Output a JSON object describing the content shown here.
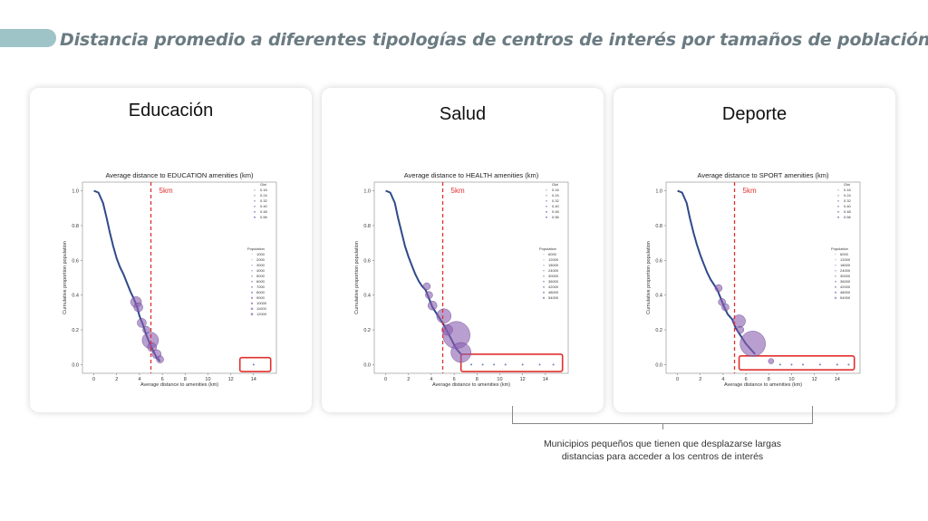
{
  "header": {
    "title": "Distancia promedio a diferentes tipologías de centros de interés por tamaños de población"
  },
  "colors": {
    "line": "#2f4a8a",
    "bubble": "#8a5fb0",
    "threshold": "#e0302e",
    "highlight_box": "#e0302e",
    "accent": "#9fc4c8"
  },
  "cards": [
    {
      "heading": "Educación",
      "threshold_label": "5km",
      "gini_title": "Gini",
      "gini_values": [
        "0.16",
        "0.24",
        "0.32",
        "0.40",
        "0.48",
        "0.56"
      ],
      "pop_title": "Population",
      "pop_values": [
        "1000",
        "2000",
        "3000",
        "4000",
        "5000",
        "6000",
        "7000",
        "8000",
        "9000",
        "10000",
        "11000",
        "12000"
      ]
    },
    {
      "heading": "Salud",
      "threshold_label": "5km",
      "gini_title": "Gini",
      "gini_values": [
        "0.16",
        "0.24",
        "0.32",
        "0.40",
        "0.48",
        "0.56"
      ],
      "pop_title": "Population",
      "pop_values": [
        "6000",
        "12000",
        "18000",
        "24000",
        "30000",
        "36000",
        "42000",
        "48000",
        "54000"
      ]
    },
    {
      "heading": "Deporte",
      "threshold_label": "5km",
      "gini_title": "Gini",
      "gini_values": [
        "0.16",
        "0.24",
        "0.32",
        "0.40",
        "0.48",
        "0.56"
      ],
      "pop_title": "Population",
      "pop_values": [
        "6000",
        "12000",
        "18000",
        "24000",
        "30000",
        "36000",
        "42000",
        "48000",
        "54000"
      ]
    }
  ],
  "chart_data": [
    {
      "type": "scatter",
      "title": "Average distance to EDUCATION amenities (km)",
      "xlabel": "Average distance to amenities (km)",
      "ylabel": "Cumulative proportion population",
      "xlim": [
        -1,
        16
      ],
      "ylim": [
        -0.05,
        1.05
      ],
      "xticks": [
        0,
        2,
        4,
        6,
        8,
        10,
        12,
        14
      ],
      "yticks": [
        0.0,
        0.2,
        0.4,
        0.6,
        0.8,
        1.0
      ],
      "threshold_x": 5,
      "highlight_range": {
        "x": [
          12.8,
          15.5
        ],
        "y": [
          -0.04,
          0.04
        ]
      },
      "line": {
        "x": [
          0,
          0.4,
          0.8,
          1.1,
          1.4,
          1.7,
          2.0,
          2.3,
          2.6,
          2.9,
          3.2,
          3.5,
          3.8,
          4.0,
          4.3,
          4.6,
          4.9,
          5.2,
          5.5,
          5.8
        ],
        "y": [
          1.0,
          0.99,
          0.93,
          0.85,
          0.76,
          0.68,
          0.61,
          0.56,
          0.52,
          0.47,
          0.42,
          0.38,
          0.33,
          0.28,
          0.23,
          0.17,
          0.12,
          0.08,
          0.04,
          0.02
        ]
      },
      "bubbles": [
        {
          "x": 3.7,
          "y": 0.36,
          "r": 6
        },
        {
          "x": 3.9,
          "y": 0.33,
          "r": 5
        },
        {
          "x": 4.2,
          "y": 0.24,
          "r": 5
        },
        {
          "x": 4.6,
          "y": 0.2,
          "r": 4
        },
        {
          "x": 4.95,
          "y": 0.14,
          "r": 9
        },
        {
          "x": 5.1,
          "y": 0.1,
          "r": 5
        },
        {
          "x": 5.5,
          "y": 0.06,
          "r": 5
        },
        {
          "x": 5.8,
          "y": 0.03,
          "r": 4
        }
      ],
      "tail_points_x": [
        14.0
      ]
    },
    {
      "type": "scatter",
      "title": "Average distance to HEALTH amenities (km)",
      "xlabel": "Average distance to amenities (km)",
      "ylabel": "Cumulative proportion population",
      "xlim": [
        -1,
        16
      ],
      "ylim": [
        -0.05,
        1.05
      ],
      "xticks": [
        0,
        2,
        4,
        6,
        8,
        10,
        12,
        14
      ],
      "yticks": [
        0.0,
        0.2,
        0.4,
        0.6,
        0.8,
        1.0
      ],
      "threshold_x": 5,
      "highlight_range": {
        "x": [
          6.6,
          15.5
        ],
        "y": [
          -0.04,
          0.06
        ]
      },
      "line": {
        "x": [
          0,
          0.4,
          0.8,
          1.1,
          1.4,
          1.7,
          2.0,
          2.3,
          2.6,
          2.9,
          3.2,
          3.5,
          3.8,
          4.1,
          4.5,
          5.0,
          5.4,
          5.8,
          6.2,
          6.6
        ],
        "y": [
          1.0,
          0.99,
          0.93,
          0.84,
          0.76,
          0.68,
          0.62,
          0.57,
          0.52,
          0.48,
          0.45,
          0.43,
          0.38,
          0.33,
          0.29,
          0.24,
          0.19,
          0.14,
          0.09,
          0.06
        ]
      },
      "bubbles": [
        {
          "x": 3.6,
          "y": 0.45,
          "r": 4
        },
        {
          "x": 3.8,
          "y": 0.4,
          "r": 4
        },
        {
          "x": 4.1,
          "y": 0.34,
          "r": 5
        },
        {
          "x": 5.1,
          "y": 0.28,
          "r": 8
        },
        {
          "x": 5.4,
          "y": 0.2,
          "r": 6
        },
        {
          "x": 6.2,
          "y": 0.17,
          "r": 15
        },
        {
          "x": 6.6,
          "y": 0.07,
          "r": 11
        }
      ],
      "tail_points_x": [
        7.5,
        8.5,
        9.5,
        10.5,
        12.0,
        13.5,
        14.7
      ]
    },
    {
      "type": "scatter",
      "title": "Average distance to SPORT amenities (km)",
      "xlabel": "Average distance to amenities (km)",
      "ylabel": "Cumulative proportion population",
      "xlim": [
        -1,
        16
      ],
      "ylim": [
        -0.05,
        1.05
      ],
      "xticks": [
        0,
        2,
        4,
        6,
        8,
        10,
        12,
        14
      ],
      "yticks": [
        0.0,
        0.2,
        0.4,
        0.6,
        0.8,
        1.0
      ],
      "threshold_x": 5,
      "highlight_range": {
        "x": [
          5.4,
          15.5
        ],
        "y": [
          -0.03,
          0.05
        ]
      },
      "line": {
        "x": [
          0,
          0.4,
          0.8,
          1.1,
          1.4,
          1.7,
          2.0,
          2.3,
          2.6,
          2.9,
          3.2,
          3.5,
          3.8,
          4.1,
          4.4,
          4.8,
          5.1,
          5.5,
          6.0,
          6.8
        ],
        "y": [
          1.0,
          0.99,
          0.93,
          0.84,
          0.76,
          0.69,
          0.63,
          0.58,
          0.53,
          0.49,
          0.46,
          0.43,
          0.38,
          0.33,
          0.29,
          0.26,
          0.21,
          0.17,
          0.12,
          0.06
        ]
      },
      "bubbles": [
        {
          "x": 3.6,
          "y": 0.44,
          "r": 4
        },
        {
          "x": 3.9,
          "y": 0.36,
          "r": 4
        },
        {
          "x": 4.2,
          "y": 0.33,
          "r": 4
        },
        {
          "x": 5.4,
          "y": 0.25,
          "r": 7
        },
        {
          "x": 5.5,
          "y": 0.2,
          "r": 4
        },
        {
          "x": 6.6,
          "y": 0.12,
          "r": 14
        },
        {
          "x": 8.2,
          "y": 0.02,
          "r": 3
        }
      ],
      "tail_points_x": [
        9.0,
        10.0,
        11.0,
        12.5,
        14.0,
        15.0
      ]
    }
  ],
  "caption": {
    "line1": "Municipios pequeños que tienen que desplazarse largas",
    "line2": "distancias para acceder a los centros de interés"
  }
}
